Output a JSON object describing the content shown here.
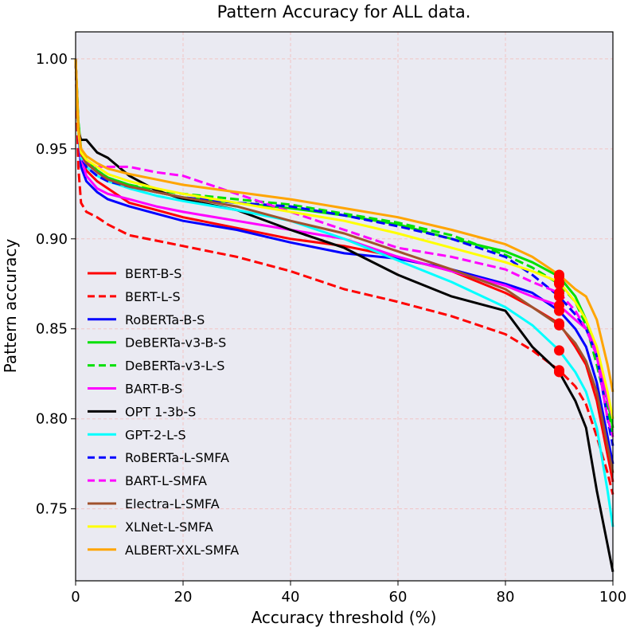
{
  "chart_data": {
    "type": "line",
    "title": "Pattern Accuracy for ALL data.",
    "xlabel": "Accuracy threshold (%)",
    "ylabel": "Pattern accuracy",
    "xlim": [
      0,
      100
    ],
    "ylim": [
      0.71,
      1.015
    ],
    "xticks": [
      0,
      20,
      40,
      60,
      80,
      100
    ],
    "yticks": [
      0.75,
      0.8,
      0.85,
      0.9,
      0.95,
      1.0
    ],
    "ytick_labels": [
      "0.75",
      "0.80",
      "0.85",
      "0.90",
      "0.95",
      "1.00"
    ],
    "grid": true,
    "legend_position": "center-left",
    "marker_x": 90,
    "x": [
      0,
      0.5,
      1,
      2,
      4,
      6,
      10,
      15,
      20,
      30,
      40,
      50,
      60,
      70,
      80,
      85,
      90,
      93,
      95,
      97,
      99,
      100
    ],
    "series": [
      {
        "name": "BERT-B-S",
        "color": "#ff0000",
        "dash": "solid",
        "values": [
          1.0,
          0.96,
          0.945,
          0.938,
          0.932,
          0.928,
          0.92,
          0.916,
          0.912,
          0.906,
          0.9,
          0.896,
          0.89,
          0.882,
          0.87,
          0.862,
          0.853,
          0.84,
          0.83,
          0.81,
          0.78,
          0.765
        ]
      },
      {
        "name": "BERT-L-S",
        "color": "#ff0000",
        "dash": "dashed",
        "values": [
          1.0,
          0.94,
          0.92,
          0.915,
          0.912,
          0.908,
          0.902,
          0.899,
          0.896,
          0.89,
          0.882,
          0.872,
          0.865,
          0.857,
          0.847,
          0.838,
          0.827,
          0.818,
          0.808,
          0.79,
          0.77,
          0.758
        ]
      },
      {
        "name": "RoBERTa-B-S",
        "color": "#0000ff",
        "dash": "solid",
        "values": [
          1.0,
          0.96,
          0.94,
          0.932,
          0.926,
          0.922,
          0.918,
          0.914,
          0.91,
          0.905,
          0.898,
          0.892,
          0.889,
          0.883,
          0.875,
          0.87,
          0.86,
          0.85,
          0.84,
          0.82,
          0.79,
          0.775
        ]
      },
      {
        "name": "DeBERTa-v3-B-S",
        "color": "#00e000",
        "dash": "solid",
        "values": [
          1.0,
          0.965,
          0.95,
          0.944,
          0.938,
          0.934,
          0.93,
          0.926,
          0.923,
          0.92,
          0.917,
          0.913,
          0.908,
          0.9,
          0.893,
          0.887,
          0.879,
          0.868,
          0.855,
          0.835,
          0.81,
          0.795
        ]
      },
      {
        "name": "DeBERTa-v3-L-S",
        "color": "#00e000",
        "dash": "dashed",
        "values": [
          1.0,
          0.965,
          0.95,
          0.944,
          0.938,
          0.934,
          0.93,
          0.927,
          0.925,
          0.922,
          0.919,
          0.914,
          0.909,
          0.902,
          0.891,
          0.884,
          0.875,
          0.865,
          0.852,
          0.83,
          0.805,
          0.79
        ]
      },
      {
        "name": "BART-B-S",
        "color": "#ff00ff",
        "dash": "solid",
        "values": [
          1.0,
          0.96,
          0.945,
          0.935,
          0.928,
          0.925,
          0.922,
          0.918,
          0.915,
          0.91,
          0.905,
          0.9,
          0.89,
          0.882,
          0.874,
          0.868,
          0.863,
          0.855,
          0.85,
          0.838,
          0.81,
          0.8
        ]
      },
      {
        "name": "OPT 1-3b-S",
        "color": "#000000",
        "dash": "solid",
        "values": [
          1.0,
          0.96,
          0.955,
          0.955,
          0.948,
          0.945,
          0.935,
          0.927,
          0.922,
          0.916,
          0.905,
          0.895,
          0.88,
          0.868,
          0.86,
          0.84,
          0.826,
          0.81,
          0.795,
          0.76,
          0.73,
          0.715
        ]
      },
      {
        "name": "GPT-2-L-S",
        "color": "#00ffff",
        "dash": "solid",
        "values": [
          1.0,
          0.96,
          0.945,
          0.94,
          0.935,
          0.932,
          0.928,
          0.924,
          0.921,
          0.916,
          0.91,
          0.9,
          0.888,
          0.876,
          0.862,
          0.852,
          0.838,
          0.826,
          0.815,
          0.795,
          0.76,
          0.74
        ]
      },
      {
        "name": "RoBERTa-L-SMFA",
        "color": "#0000ff",
        "dash": "dashed",
        "values": [
          1.0,
          0.96,
          0.945,
          0.94,
          0.935,
          0.932,
          0.929,
          0.926,
          0.923,
          0.92,
          0.918,
          0.913,
          0.907,
          0.9,
          0.89,
          0.88,
          0.868,
          0.858,
          0.85,
          0.835,
          0.8,
          0.785
        ]
      },
      {
        "name": "BART-L-SMFA",
        "color": "#ff00ff",
        "dash": "dashed",
        "values": [
          1.0,
          0.96,
          0.945,
          0.942,
          0.94,
          0.94,
          0.94,
          0.937,
          0.935,
          0.925,
          0.915,
          0.905,
          0.895,
          0.89,
          0.883,
          0.876,
          0.87,
          0.86,
          0.85,
          0.835,
          0.8,
          0.79
        ]
      },
      {
        "name": "Electra-L-SMFA",
        "color": "#a0522d",
        "dash": "solid",
        "values": [
          1.0,
          0.96,
          0.947,
          0.942,
          0.937,
          0.933,
          0.929,
          0.926,
          0.923,
          0.918,
          0.91,
          0.903,
          0.893,
          0.883,
          0.872,
          0.862,
          0.852,
          0.842,
          0.832,
          0.815,
          0.785,
          0.77
        ]
      },
      {
        "name": "XLNet-L-SMFA",
        "color": "#ffff00",
        "dash": "solid",
        "values": [
          1.0,
          0.96,
          0.948,
          0.944,
          0.94,
          0.936,
          0.932,
          0.928,
          0.925,
          0.92,
          0.915,
          0.91,
          0.903,
          0.895,
          0.887,
          0.882,
          0.876,
          0.865,
          0.855,
          0.84,
          0.815,
          0.8
        ]
      },
      {
        "name": "ALBERT-XXL-SMFA",
        "color": "#ffa500",
        "dash": "solid",
        "values": [
          1.0,
          0.962,
          0.95,
          0.946,
          0.942,
          0.939,
          0.936,
          0.933,
          0.93,
          0.926,
          0.922,
          0.917,
          0.912,
          0.905,
          0.897,
          0.89,
          0.88,
          0.872,
          0.868,
          0.855,
          0.83,
          0.815
        ]
      }
    ]
  }
}
